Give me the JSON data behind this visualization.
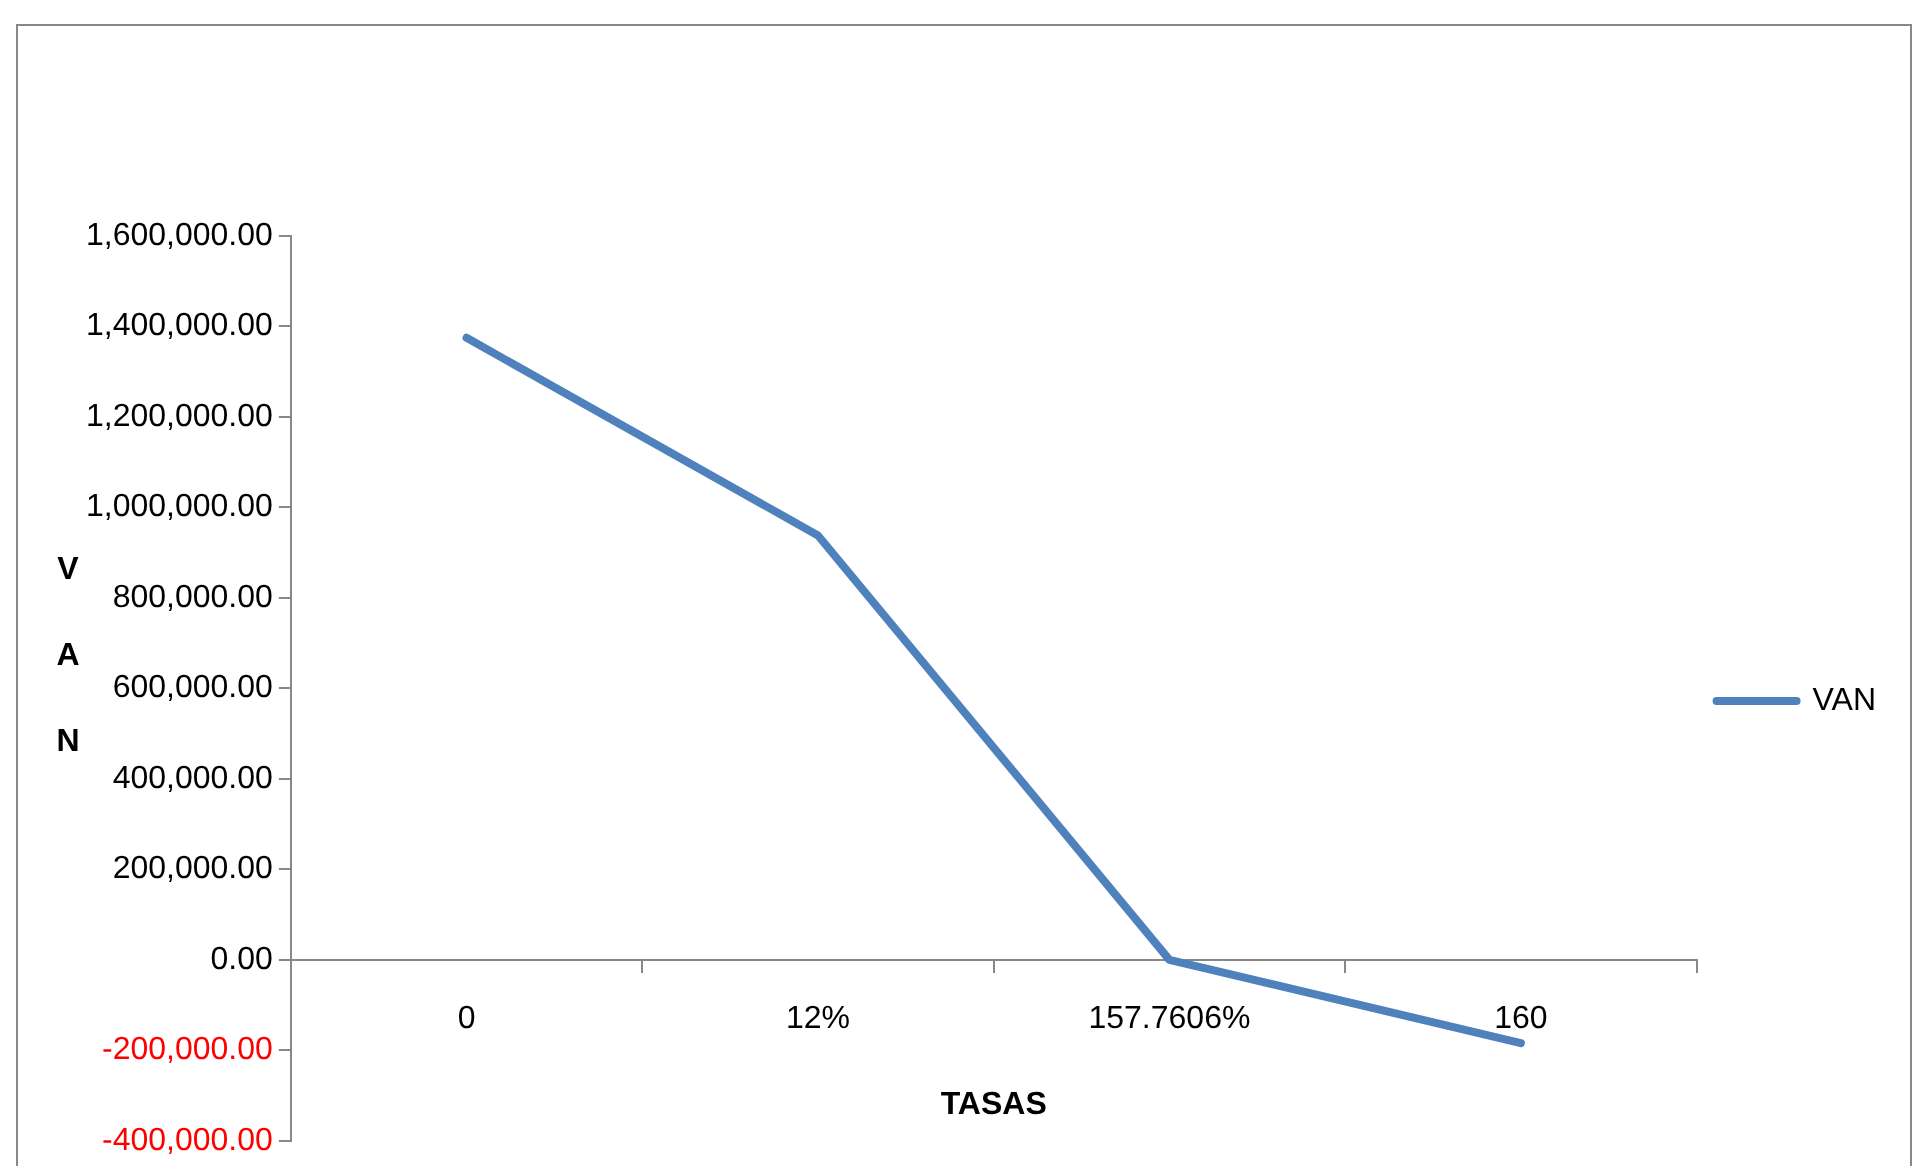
{
  "chart_data": {
    "type": "line",
    "xlabel": "TASAS",
    "ylabel": "VAN",
    "categories": [
      "0",
      "12%",
      "157.7606%",
      "160"
    ],
    "series": [
      {
        "name": "VAN",
        "color": "#4f81bd",
        "values": [
          1375000,
          938000,
          0,
          -184000
        ]
      }
    ],
    "ylim": [
      -400000,
      1600000
    ],
    "yticks": [
      {
        "value": -400000,
        "label": "-400,000.00"
      },
      {
        "value": -200000,
        "label": "-200,000.00"
      },
      {
        "value": 0,
        "label": "0.00"
      },
      {
        "value": 200000,
        "label": "200,000.00"
      },
      {
        "value": 400000,
        "label": "400,000.00"
      },
      {
        "value": 600000,
        "label": "600,000.00"
      },
      {
        "value": 800000,
        "label": "800,000.00"
      },
      {
        "value": 1000000,
        "label": "1,000,000.00"
      },
      {
        "value": 1200000,
        "label": "1,200,000.00"
      },
      {
        "value": 1400000,
        "label": "1,400,000.00"
      },
      {
        "value": 1600000,
        "label": "1,600,000.00"
      }
    ],
    "grid": false,
    "legend": "right",
    "marker": "none",
    "line_style": "solid"
  }
}
